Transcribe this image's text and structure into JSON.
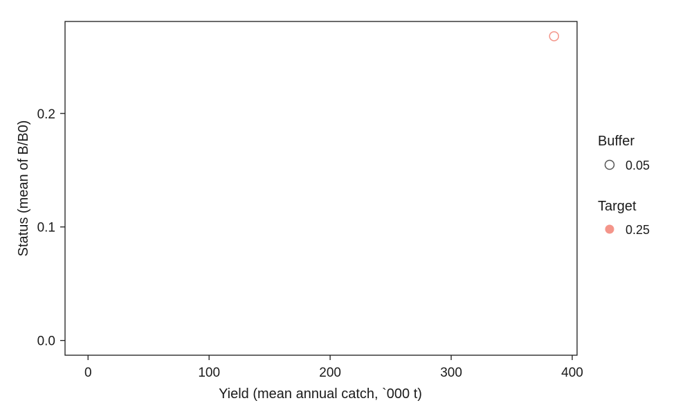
{
  "chart_data": {
    "type": "scatter",
    "title": "",
    "xlabel": "Yield (mean annual catch, `000 t)",
    "ylabel": "Status (mean of B/B0)",
    "xlim": [
      -19,
      404
    ],
    "ylim": [
      -0.013,
      0.281
    ],
    "xticks": [
      0,
      100,
      200,
      300,
      400
    ],
    "yticks": [
      0.0,
      0.1,
      0.2
    ],
    "xtick_labels": [
      "0",
      "100",
      "200",
      "300",
      "400"
    ],
    "ytick_labels": [
      "0.0",
      "0.1",
      "0.2"
    ],
    "grid": false,
    "legend_position": "right",
    "points": [
      {
        "x": 385,
        "y": 0.268,
        "buffer": "0.05",
        "target": "0.25",
        "color": "#f4958a",
        "marker": "open-circle"
      }
    ]
  },
  "legend": {
    "buffer": {
      "title": "Buffer",
      "items": [
        {
          "label": "0.05",
          "marker": "open-circle",
          "color": "#555555"
        }
      ]
    },
    "target": {
      "title": "Target",
      "items": [
        {
          "label": "0.25",
          "marker": "filled-circle",
          "color": "#f4958a"
        }
      ]
    }
  },
  "colors": {
    "axis": "#1a1a1a",
    "panel_border": "#1a1a1a",
    "background": "#ffffff"
  }
}
